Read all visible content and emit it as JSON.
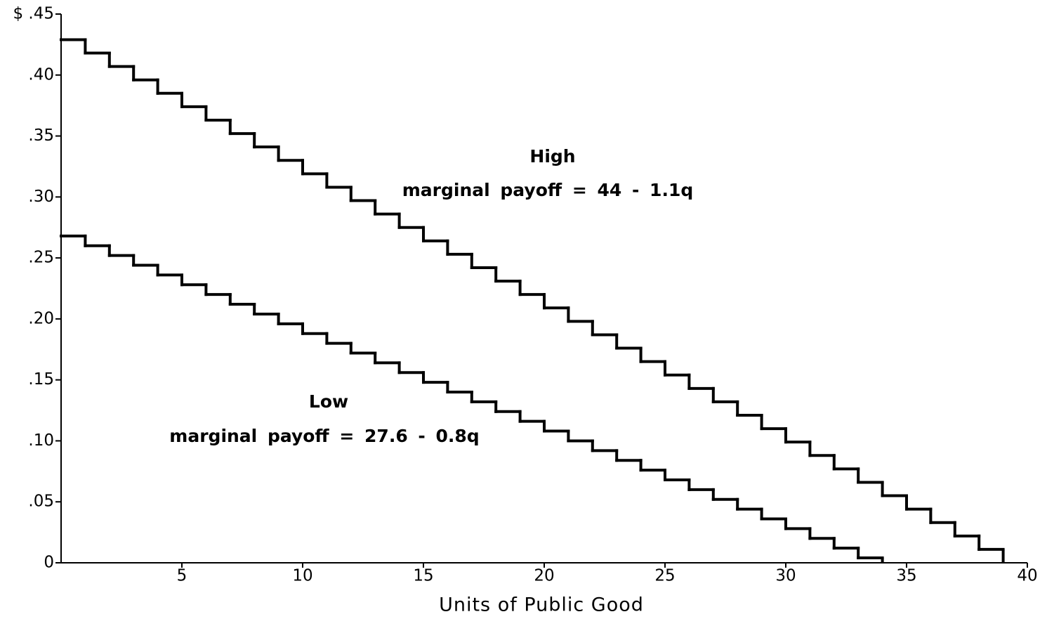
{
  "chart_data": {
    "type": "step",
    "xlabel": "Units of Public Good",
    "xlim": [
      0,
      40
    ],
    "xticks": [
      5,
      10,
      15,
      20,
      25,
      30,
      35,
      40
    ],
    "ylim": [
      0,
      0.45
    ],
    "yticks": [
      0,
      {
        "value": 0.05,
        "label": ".05"
      },
      {
        "value": 0.1,
        "label": ".10"
      },
      {
        "value": 0.15,
        "label": ".15"
      },
      {
        "value": 0.2,
        "label": ".20"
      },
      {
        "value": 0.25,
        "label": ".25"
      },
      {
        "value": 0.3,
        "label": ".30"
      },
      {
        "value": 0.35,
        "label": ".35"
      },
      {
        "value": 0.4,
        "label": ".40"
      },
      {
        "value": 0.45,
        "label": "$ .45"
      }
    ],
    "grid": false,
    "series": [
      {
        "name": "High",
        "annotation": "marginal payoff = 44 - 1.1q",
        "color": "#000000",
        "x": [
          1,
          2,
          3,
          4,
          5,
          6,
          7,
          8,
          9,
          10,
          11,
          12,
          13,
          14,
          15,
          16,
          17,
          18,
          19,
          20,
          21,
          22,
          23,
          24,
          25,
          26,
          27,
          28,
          29,
          30,
          31,
          32,
          33,
          34,
          35,
          36,
          37,
          38,
          39
        ],
        "values": [
          0.429,
          0.418,
          0.407,
          0.396,
          0.385,
          0.374,
          0.363,
          0.352,
          0.341,
          0.33,
          0.319,
          0.308,
          0.297,
          0.286,
          0.275,
          0.264,
          0.253,
          0.242,
          0.231,
          0.22,
          0.209,
          0.198,
          0.187,
          0.176,
          0.165,
          0.154,
          0.143,
          0.132,
          0.121,
          0.11,
          0.099,
          0.088,
          0.077,
          0.066,
          0.055,
          0.044,
          0.033,
          0.022,
          0.011
        ]
      },
      {
        "name": "Low",
        "annotation": "marginal payoff = 27.6 - 0.8q",
        "color": "#000000",
        "x": [
          1,
          2,
          3,
          4,
          5,
          6,
          7,
          8,
          9,
          10,
          11,
          12,
          13,
          14,
          15,
          16,
          17,
          18,
          19,
          20,
          21,
          22,
          23,
          24,
          25,
          26,
          27,
          28,
          29,
          30,
          31,
          32,
          33,
          34
        ],
        "values": [
          0.268,
          0.26,
          0.252,
          0.244,
          0.236,
          0.228,
          0.22,
          0.212,
          0.204,
          0.196,
          0.188,
          0.18,
          0.172,
          0.164,
          0.156,
          0.148,
          0.14,
          0.132,
          0.124,
          0.116,
          0.108,
          0.1,
          0.092,
          0.084,
          0.076,
          0.068,
          0.06,
          0.052,
          0.044,
          0.036,
          0.028,
          0.02,
          0.012,
          0.004
        ]
      }
    ]
  }
}
